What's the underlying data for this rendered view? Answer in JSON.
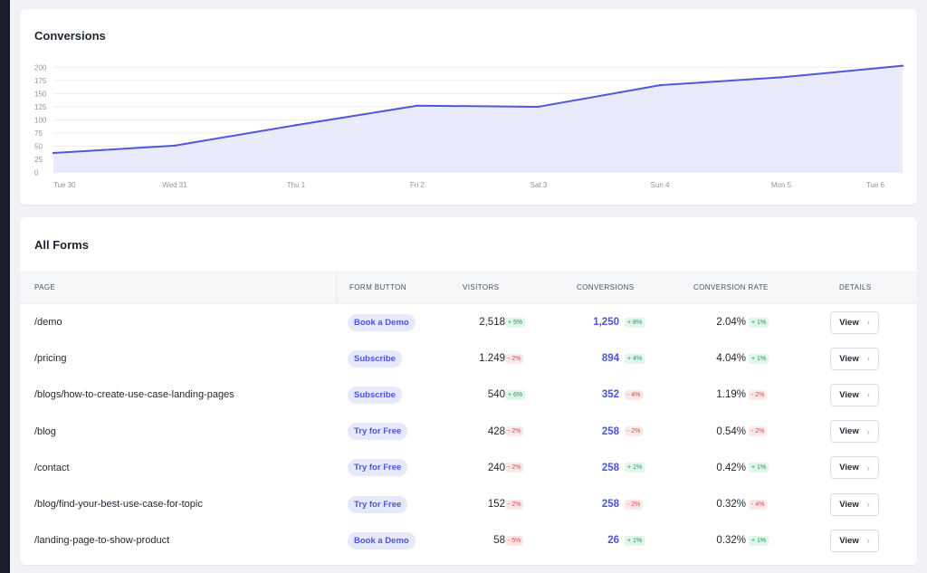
{
  "chart": {
    "title": "Conversions",
    "colors": {
      "line": "#5057d9",
      "fill": "#e9ebfb",
      "grid": "#eceef3",
      "tick": "#8e94a3"
    }
  },
  "chart_data": {
    "type": "area",
    "title": "Conversions",
    "x": [
      "Tue 30",
      "Wed 31",
      "Thu 1",
      "Fri 2",
      "Sat 3",
      "Sun 4",
      "Mon 5",
      "Tue 6"
    ],
    "series": [
      {
        "values": [
          37,
          51,
          90,
          127,
          125,
          166,
          181,
          203
        ]
      }
    ],
    "yticks": [
      0,
      25,
      50,
      75,
      100,
      125,
      150,
      175,
      200
    ],
    "ylim": [
      0,
      205
    ],
    "grid": true,
    "legend": "none"
  },
  "forms": {
    "title": "All Forms",
    "columns": {
      "page": "PAGE",
      "form_button": "FORM BUTTON",
      "visitors": "VISITORS",
      "conversions": "CONVERSIONS",
      "conversion_rate": "CONVERSION RATE",
      "details": "DETAILS"
    },
    "view_label": "View",
    "rows": [
      {
        "page": "/demo",
        "button": "Book a Demo",
        "visitors": "2,518",
        "visitors_change": "+ 5%",
        "visitors_dir": "up",
        "conversions": "1,250",
        "conversions_change": "+ 8%",
        "conversions_dir": "up",
        "rate": "2.04%",
        "rate_change": "+ 1%",
        "rate_dir": "up"
      },
      {
        "page": "/pricing",
        "button": "Subscribe",
        "visitors": "1.249",
        "visitors_change": "- 2%",
        "visitors_dir": "down",
        "conversions": "894",
        "conversions_change": "+ 4%",
        "conversions_dir": "up",
        "rate": "4.04%",
        "rate_change": "+ 1%",
        "rate_dir": "up"
      },
      {
        "page": "/blogs/how-to-create-use-case-landing-pages",
        "button": "Subscribe",
        "visitors": "540",
        "visitors_change": "+ 6%",
        "visitors_dir": "up",
        "conversions": "352",
        "conversions_change": "- 4%",
        "conversions_dir": "down",
        "rate": "1.19%",
        "rate_change": "- 2%",
        "rate_dir": "down"
      },
      {
        "page": "/blog",
        "button": "Try for Free",
        "visitors": "428",
        "visitors_change": "- 2%",
        "visitors_dir": "down",
        "conversions": "258",
        "conversions_change": "- 2%",
        "conversions_dir": "down",
        "rate": "0.54%",
        "rate_change": "- 2%",
        "rate_dir": "down"
      },
      {
        "page": "/contact",
        "button": "Try for Free",
        "visitors": "240",
        "visitors_change": "- 2%",
        "visitors_dir": "down",
        "conversions": "258",
        "conversions_change": "+ 1%",
        "conversions_dir": "up",
        "rate": "0.42%",
        "rate_change": "+ 1%",
        "rate_dir": "up"
      },
      {
        "page": "/blog/find-your-best-use-case-for-topic",
        "button": "Try for Free",
        "visitors": "152",
        "visitors_change": "- 2%",
        "visitors_dir": "down",
        "conversions": "258",
        "conversions_change": "- 2%",
        "conversions_dir": "down",
        "rate": "0.32%",
        "rate_change": "- 4%",
        "rate_dir": "down"
      },
      {
        "page": "/landing-page-to-show-product",
        "button": "Book a Demo",
        "visitors": "58",
        "visitors_change": "- 5%",
        "visitors_dir": "down",
        "conversions": "26",
        "conversions_change": "+ 1%",
        "conversions_dir": "up",
        "rate": "0.32%",
        "rate_change": "+ 1%",
        "rate_dir": "up"
      }
    ]
  }
}
